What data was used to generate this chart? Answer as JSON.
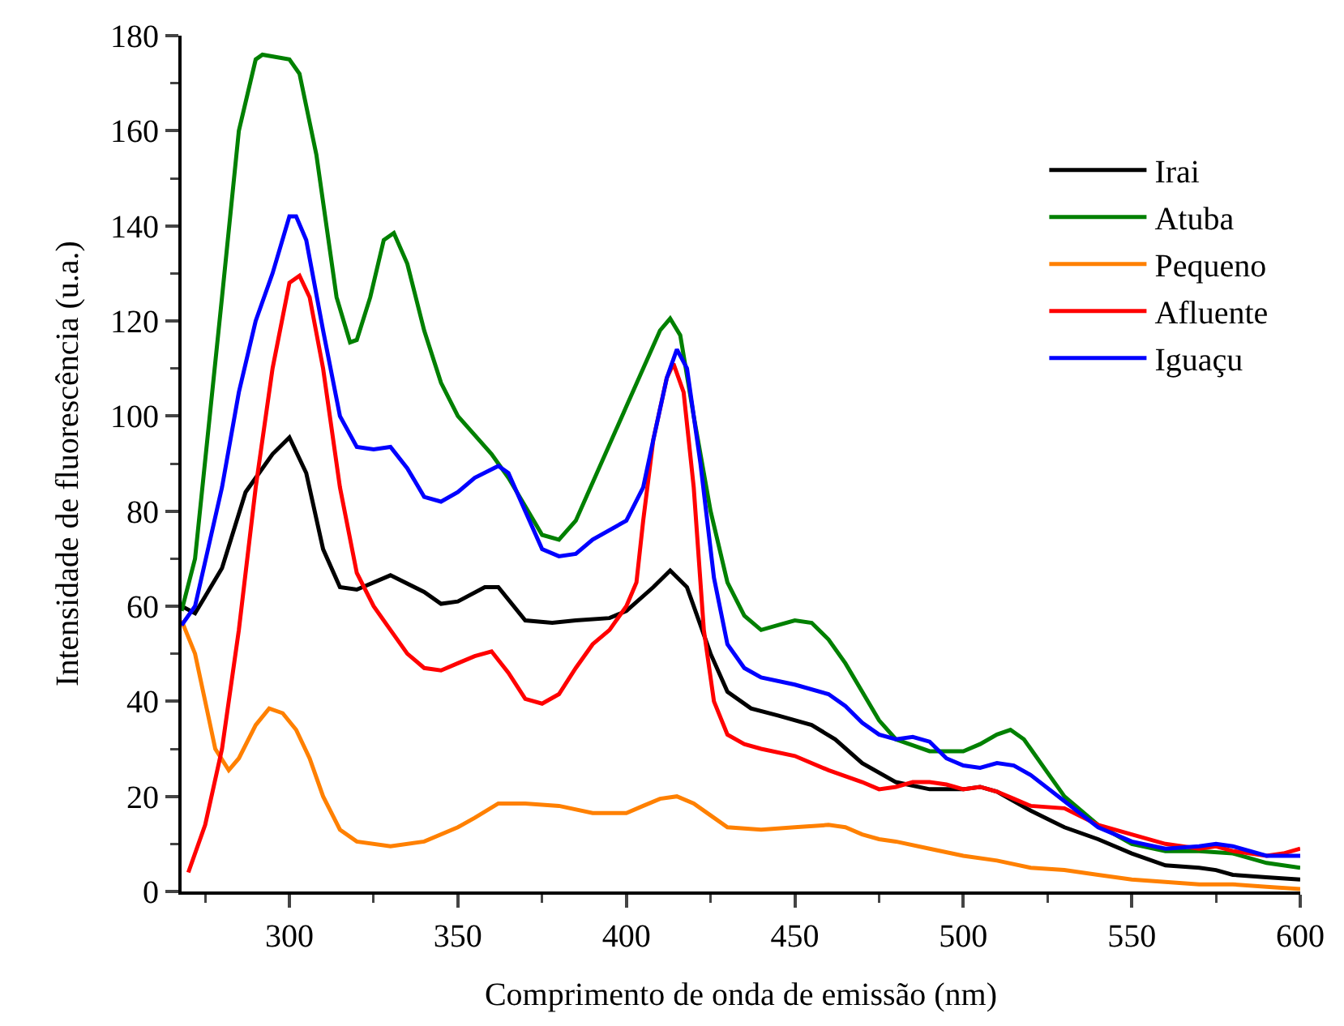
{
  "chart_data": {
    "type": "line",
    "xlabel": "Comprimento de onda de emissão (nm)",
    "ylabel": "Intensidade de fluorescência (u.a.)",
    "xlim": [
      268,
      600
    ],
    "xticks": [
      300,
      350,
      400,
      450,
      500,
      550,
      600
    ],
    "ylim": [
      0,
      180
    ],
    "yticks": [
      0,
      20,
      40,
      60,
      80,
      100,
      120,
      140,
      160,
      180
    ],
    "grid": false,
    "legend": "top right",
    "marker": "none",
    "line_style": "solid",
    "series": [
      {
        "name": "Irai",
        "color": "#000000",
        "x": [
          268,
          272,
          280,
          287,
          295,
          300,
          305,
          310,
          315,
          320,
          330,
          340,
          345,
          350,
          358,
          362,
          370,
          378,
          385,
          395,
          400,
          408,
          413,
          418,
          425,
          430,
          437,
          445,
          455,
          462,
          470,
          480,
          490,
          500,
          505,
          510,
          520,
          530,
          540,
          550,
          560,
          570,
          575,
          580,
          590,
          600
        ],
        "values": [
          60,
          58.5,
          68,
          84,
          92,
          95.5,
          88,
          72,
          64,
          63.5,
          66.5,
          63,
          60.5,
          61,
          64,
          64,
          57,
          56.5,
          57,
          57.5,
          59,
          64,
          67.5,
          64,
          50,
          42,
          38.5,
          37,
          35,
          32,
          27,
          23,
          21.5,
          21.5,
          22,
          21,
          17,
          13.5,
          11,
          8,
          5.5,
          5,
          4.5,
          3.5,
          3,
          2.5
        ]
      },
      {
        "name": "Atuba",
        "color": "#008000",
        "x": [
          268,
          272,
          280,
          285,
          290,
          292,
          300,
          303,
          308,
          314,
          318,
          320,
          324,
          328,
          331,
          335,
          340,
          345,
          350,
          360,
          365,
          370,
          375,
          380,
          385,
          390,
          400,
          410,
          413,
          416,
          420,
          425,
          430,
          435,
          440,
          445,
          450,
          455,
          460,
          465,
          470,
          475,
          480,
          490,
          500,
          505,
          510,
          514,
          518,
          525,
          530,
          540,
          550,
          560,
          570,
          580,
          590,
          600
        ],
        "values": [
          59,
          70,
          125,
          160,
          175,
          176,
          175,
          172,
          155,
          125,
          115.5,
          116,
          125,
          137,
          138.5,
          132,
          118,
          107,
          100,
          92,
          87,
          81,
          75,
          74,
          78,
          86,
          102,
          118,
          120.5,
          117,
          100,
          80,
          65,
          58,
          55,
          56,
          57,
          56.5,
          53,
          48,
          42,
          36,
          32,
          29.5,
          29.5,
          31,
          33,
          34,
          32,
          25,
          20,
          14,
          10,
          8.5,
          8.5,
          8,
          6,
          5
        ]
      },
      {
        "name": "Pequeno",
        "color": "#ff8000",
        "x": [
          268,
          272,
          275,
          278,
          282,
          285,
          290,
          294,
          298,
          302,
          306,
          310,
          315,
          320,
          330,
          340,
          350,
          355,
          362,
          370,
          380,
          390,
          395,
          400,
          405,
          410,
          415,
          420,
          425,
          430,
          440,
          450,
          460,
          465,
          470,
          475,
          480,
          490,
          500,
          510,
          520,
          530,
          540,
          550,
          560,
          570,
          580,
          590,
          600
        ],
        "values": [
          57,
          50,
          40,
          30,
          25.5,
          28,
          35,
          38.5,
          37.5,
          34,
          28,
          20,
          13,
          10.5,
          9.5,
          10.5,
          13.5,
          15.5,
          18.5,
          18.5,
          18,
          16.5,
          16.5,
          16.5,
          18,
          19.5,
          20,
          18.5,
          16,
          13.5,
          13,
          13.5,
          14,
          13.5,
          12,
          11,
          10.5,
          9,
          7.5,
          6.5,
          5,
          4.5,
          3.5,
          2.5,
          2,
          1.5,
          1.5,
          1,
          0.5
        ]
      },
      {
        "name": "Afluente",
        "color": "#ff0000",
        "x": [
          270,
          275,
          280,
          285,
          290,
          295,
          300,
          303,
          306,
          310,
          315,
          320,
          325,
          330,
          335,
          340,
          345,
          350,
          355,
          360,
          365,
          370,
          375,
          380,
          385,
          390,
          395,
          400,
          403,
          405,
          408,
          412,
          414,
          417,
          420,
          423,
          426,
          430,
          435,
          440,
          450,
          460,
          470,
          475,
          480,
          485,
          490,
          495,
          500,
          505,
          510,
          515,
          520,
          530,
          540,
          550,
          560,
          570,
          575,
          580,
          590,
          595,
          600
        ],
        "values": [
          4,
          14,
          30,
          55,
          85,
          110,
          128,
          129.5,
          125,
          110,
          85,
          67,
          60,
          55,
          50,
          47,
          46.5,
          48,
          49.5,
          50.5,
          46,
          40.5,
          39.5,
          41.5,
          47,
          52,
          55,
          60,
          65,
          78,
          95,
          108,
          111,
          105,
          85,
          55,
          40,
          33,
          31,
          30,
          28.5,
          25.5,
          23,
          21.5,
          22,
          23,
          23,
          22.5,
          21.5,
          22,
          21,
          19.5,
          18,
          17.5,
          14,
          12,
          10,
          9,
          9.5,
          8.5,
          7.5,
          8,
          9
        ]
      },
      {
        "name": "Iguaçu",
        "color": "#0000ff",
        "x": [
          268,
          272,
          280,
          285,
          290,
          295,
          300,
          302,
          305,
          310,
          315,
          320,
          325,
          330,
          335,
          340,
          345,
          350,
          355,
          362,
          365,
          370,
          375,
          380,
          385,
          390,
          400,
          405,
          408,
          412,
          415,
          418,
          422,
          426,
          430,
          435,
          440,
          450,
          460,
          465,
          470,
          475,
          480,
          485,
          490,
          495,
          500,
          505,
          510,
          515,
          520,
          530,
          540,
          550,
          560,
          570,
          575,
          580,
          590,
          600
        ],
        "values": [
          56,
          60,
          85,
          105,
          120,
          130,
          142,
          142,
          137,
          118,
          100,
          93.5,
          93,
          93.5,
          89,
          83,
          82,
          84,
          87,
          89.5,
          88,
          80,
          72,
          70.5,
          71,
          74,
          78,
          85,
          95,
          108,
          114,
          110,
          90,
          66,
          52,
          47,
          45,
          43.5,
          41.5,
          39,
          35.5,
          33,
          32,
          32.5,
          31.5,
          28,
          26.5,
          26,
          27,
          26.5,
          24.5,
          19,
          13.5,
          10.5,
          9,
          9.5,
          10,
          9.5,
          7.5,
          7.5
        ]
      }
    ]
  }
}
